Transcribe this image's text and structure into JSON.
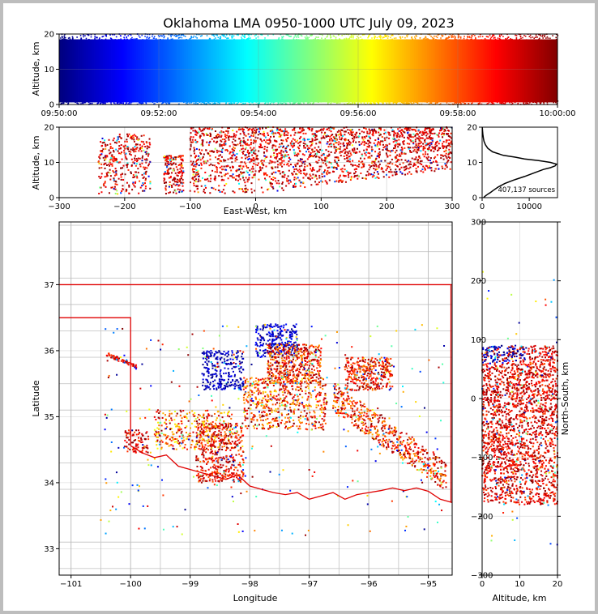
{
  "title": "Oklahoma LMA 0950-1000 UTC July 09, 2023",
  "colors": {
    "frame": "#bdbdbd",
    "state_border": "#e00000",
    "county_lines": "#c8c8c8",
    "histogram_line": "#000000",
    "colormap": "jet"
  },
  "chart_data": [
    {
      "panel": "time-altitude",
      "type": "scatter",
      "xlabel": "",
      "ylabel": "Altitude, km",
      "x_ticks": [
        "09:50:00",
        "09:52:00",
        "09:54:00",
        "09:56:00",
        "09:58:00",
        "10:00:00"
      ],
      "x_range": [
        "09:50:00",
        "10:00:00"
      ],
      "y_ticks": [
        0,
        10,
        20
      ],
      "y_range": [
        0,
        20
      ],
      "color_by": "time",
      "grid": true
    },
    {
      "panel": "east-west-altitude",
      "type": "scatter",
      "xlabel": "East-West, km",
      "ylabel": "Altitude, km",
      "x_ticks": [
        -300,
        -200,
        -100,
        0,
        100,
        200,
        300
      ],
      "x_range": [
        -300,
        300
      ],
      "y_ticks": [
        0,
        10,
        20
      ],
      "y_range": [
        0,
        20
      ],
      "clusters": [
        {
          "x": [
            -240,
            -215
          ],
          "z": [
            6,
            17
          ],
          "weight": 0.3
        },
        {
          "x": [
            -215,
            -160
          ],
          "z": [
            3,
            18
          ],
          "weight": 0.7
        },
        {
          "x": [
            -140,
            -110
          ],
          "z": [
            3,
            12
          ],
          "weight": 0.5
        },
        {
          "x": [
            -100,
            300
          ],
          "z": [
            1,
            20
          ],
          "weight": 6
        }
      ],
      "grid": true
    },
    {
      "panel": "altitude-histogram",
      "type": "line",
      "xlabel": "",
      "ylabel": "",
      "x_ticks": [
        0,
        10000
      ],
      "x_range": [
        0,
        16000
      ],
      "y_ticks": [
        0,
        10,
        20
      ],
      "y_range": [
        0,
        20
      ],
      "annotation": "407,137 sources",
      "altitude_km": [
        0,
        0.5,
        1,
        1.5,
        2,
        3,
        4,
        5,
        6,
        7,
        8,
        8.5,
        9,
        9.5,
        10,
        10.5,
        11,
        11.5,
        12,
        13,
        14,
        15,
        16,
        17,
        18,
        19,
        20
      ],
      "counts": [
        300,
        700,
        1200,
        1800,
        2300,
        3400,
        4800,
        6700,
        9000,
        11000,
        13000,
        14500,
        15500,
        15800,
        14500,
        12000,
        9000,
        7000,
        4500,
        2200,
        1200,
        700,
        400,
        250,
        150,
        80,
        30
      ]
    },
    {
      "panel": "plan-view",
      "type": "scatter",
      "xlabel": "Longitude",
      "ylabel": "Latitude",
      "x_ticks": [
        -101,
        -100,
        -99,
        -98,
        -97,
        -96,
        -95
      ],
      "x_range": [
        -101.2,
        -94.6
      ],
      "y_ticks": [
        33,
        34,
        35,
        36,
        37
      ],
      "y_range": [
        32.6,
        37.95
      ],
      "clusters": [
        {
          "name": "north-blue",
          "lon": [
            -97.9,
            -97.2
          ],
          "lat": [
            35.9,
            36.4
          ],
          "tmin": 0.0,
          "tmax": 0.15,
          "weight": 1.2
        },
        {
          "name": "northwest-blue",
          "lon": [
            -98.8,
            -98.1
          ],
          "lat": [
            35.4,
            36.0
          ],
          "tmin": 0.0,
          "tmax": 0.12,
          "weight": 1.2
        },
        {
          "name": "panhandle-line",
          "lon": [
            -100.4,
            -99.9
          ],
          "lat": [
            35.75,
            35.95
          ],
          "tmin": 0.8,
          "tmax": 1.0,
          "weight": 0.3
        },
        {
          "name": "central-north",
          "lon": [
            -97.7,
            -96.8
          ],
          "lat": [
            35.5,
            36.1
          ],
          "tmin": 0.7,
          "tmax": 1.0,
          "weight": 2.2
        },
        {
          "name": "central",
          "lon": [
            -98.1,
            -96.7
          ],
          "lat": [
            34.8,
            35.6
          ],
          "tmin": 0.65,
          "tmax": 1.0,
          "weight": 2.5
        },
        {
          "name": "east-north",
          "lon": [
            -96.4,
            -95.6
          ],
          "lat": [
            35.4,
            35.9
          ],
          "tmin": 0.75,
          "tmax": 1.0,
          "weight": 1.5
        },
        {
          "name": "east-band",
          "lon": [
            -96.6,
            -94.7
          ],
          "lat": [
            34.0,
            35.3
          ],
          "tmin": 0.7,
          "tmax": 1.0,
          "weight": 2.5
        },
        {
          "name": "southwest",
          "lon": [
            -98.9,
            -98.1
          ],
          "lat": [
            34.0,
            34.9
          ],
          "tmin": 0.75,
          "tmax": 1.0,
          "weight": 2.0
        },
        {
          "name": "west",
          "lon": [
            -99.6,
            -98.3
          ],
          "lat": [
            34.5,
            35.1
          ],
          "tmin": 0.6,
          "tmax": 1.0,
          "weight": 1.5
        },
        {
          "name": "far-west",
          "lon": [
            -100.1,
            -99.7
          ],
          "lat": [
            34.45,
            34.8
          ],
          "tmin": 0.8,
          "tmax": 1.0,
          "weight": 0.4
        }
      ],
      "grid": true
    },
    {
      "panel": "north-south-altitude",
      "type": "scatter",
      "xlabel": "Altitude, km",
      "ylabel": "North-South, km",
      "x_ticks": [
        0,
        10,
        20
      ],
      "x_range": [
        0,
        20
      ],
      "y_ticks": [
        -300,
        -200,
        -100,
        0,
        100,
        200,
        300
      ],
      "y_range": [
        -300,
        300
      ],
      "ylabel_position": "right",
      "grid": true
    }
  ]
}
